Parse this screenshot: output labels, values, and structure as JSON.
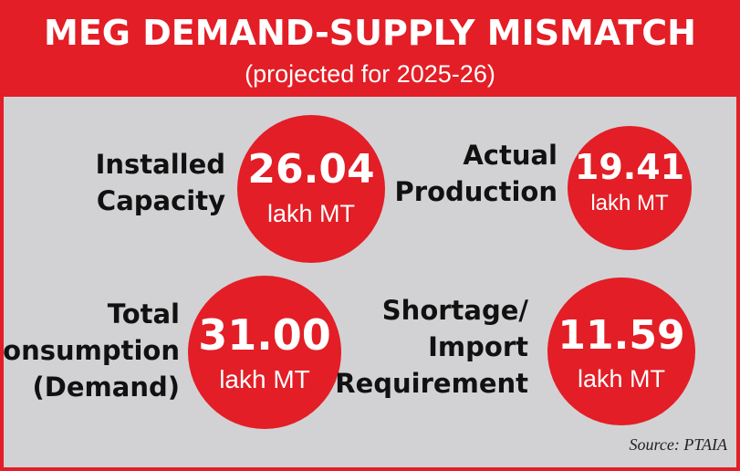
{
  "header": {
    "title": "MEG DEMAND-SUPPLY MISMATCH",
    "subtitle": "(projected for 2025-26)"
  },
  "stats": {
    "installed_capacity": {
      "label_line1": "Installed",
      "label_line2": "Capacity",
      "value": "26.04",
      "unit": "lakh MT"
    },
    "actual_production": {
      "label_line1": "Actual",
      "label_line2": "Production",
      "value": "19.41",
      "unit": "lakh MT"
    },
    "total_consumption": {
      "label_line1": "Total",
      "label_line2": "Consumption",
      "label_line3": "(Demand)",
      "value": "31.00",
      "unit": "lakh MT"
    },
    "shortage": {
      "label_line1": "Shortage/",
      "label_line2": "Import",
      "label_line3": "Requirement",
      "value": "11.59",
      "unit": "lakh MT"
    }
  },
  "source": "Source: PTAIA",
  "colors": {
    "accent_red": "#e31e26",
    "panel_gray": "#d2d2d4",
    "text_dark": "#111111",
    "text_light": "#ffffff"
  }
}
